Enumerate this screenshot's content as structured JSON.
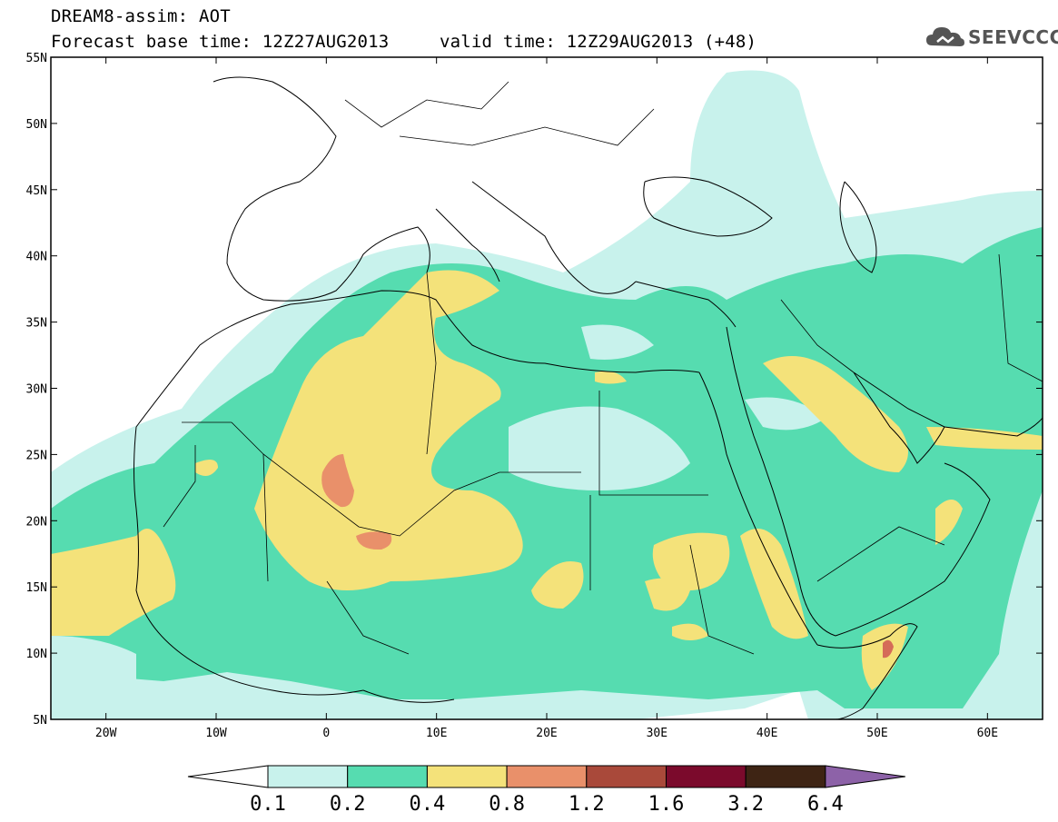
{
  "header": {
    "title": "DREAM8-assim: AOT",
    "base_time": "Forecast base time: 12Z27AUG2013",
    "valid_time": "valid time: 12Z29AUG2013 (+48)"
  },
  "logo": {
    "text": "SEEVCCC",
    "icon": "cloud-icon"
  },
  "map": {
    "lon_ticks": [
      "20W",
      "10W",
      "0",
      "10E",
      "20E",
      "30E",
      "40E",
      "50E",
      "60E"
    ],
    "lat_ticks": [
      "55N",
      "50N",
      "45N",
      "40N",
      "35N",
      "30N",
      "25N",
      "20N",
      "15N",
      "10N",
      "5N"
    ],
    "lon_range": [
      -25,
      65
    ],
    "lat_range": [
      5,
      55
    ]
  },
  "colorbar": {
    "levels": [
      "0.1",
      "0.2",
      "0.4",
      "0.8",
      "1.2",
      "1.6",
      "3.2",
      "6.4"
    ],
    "colors": [
      "#ffffff",
      "#c8f2ec",
      "#56dcb0",
      "#f4e27a",
      "#e9906a",
      "#a9493a",
      "#7b0a2c",
      "#3e2414",
      "#8d62a8"
    ]
  },
  "colors": {
    "low": "#c8f2ec",
    "medium": "#56dcb0",
    "high": "#f4e27a",
    "very_high": "#e9906a",
    "extreme": "#d56b58"
  }
}
